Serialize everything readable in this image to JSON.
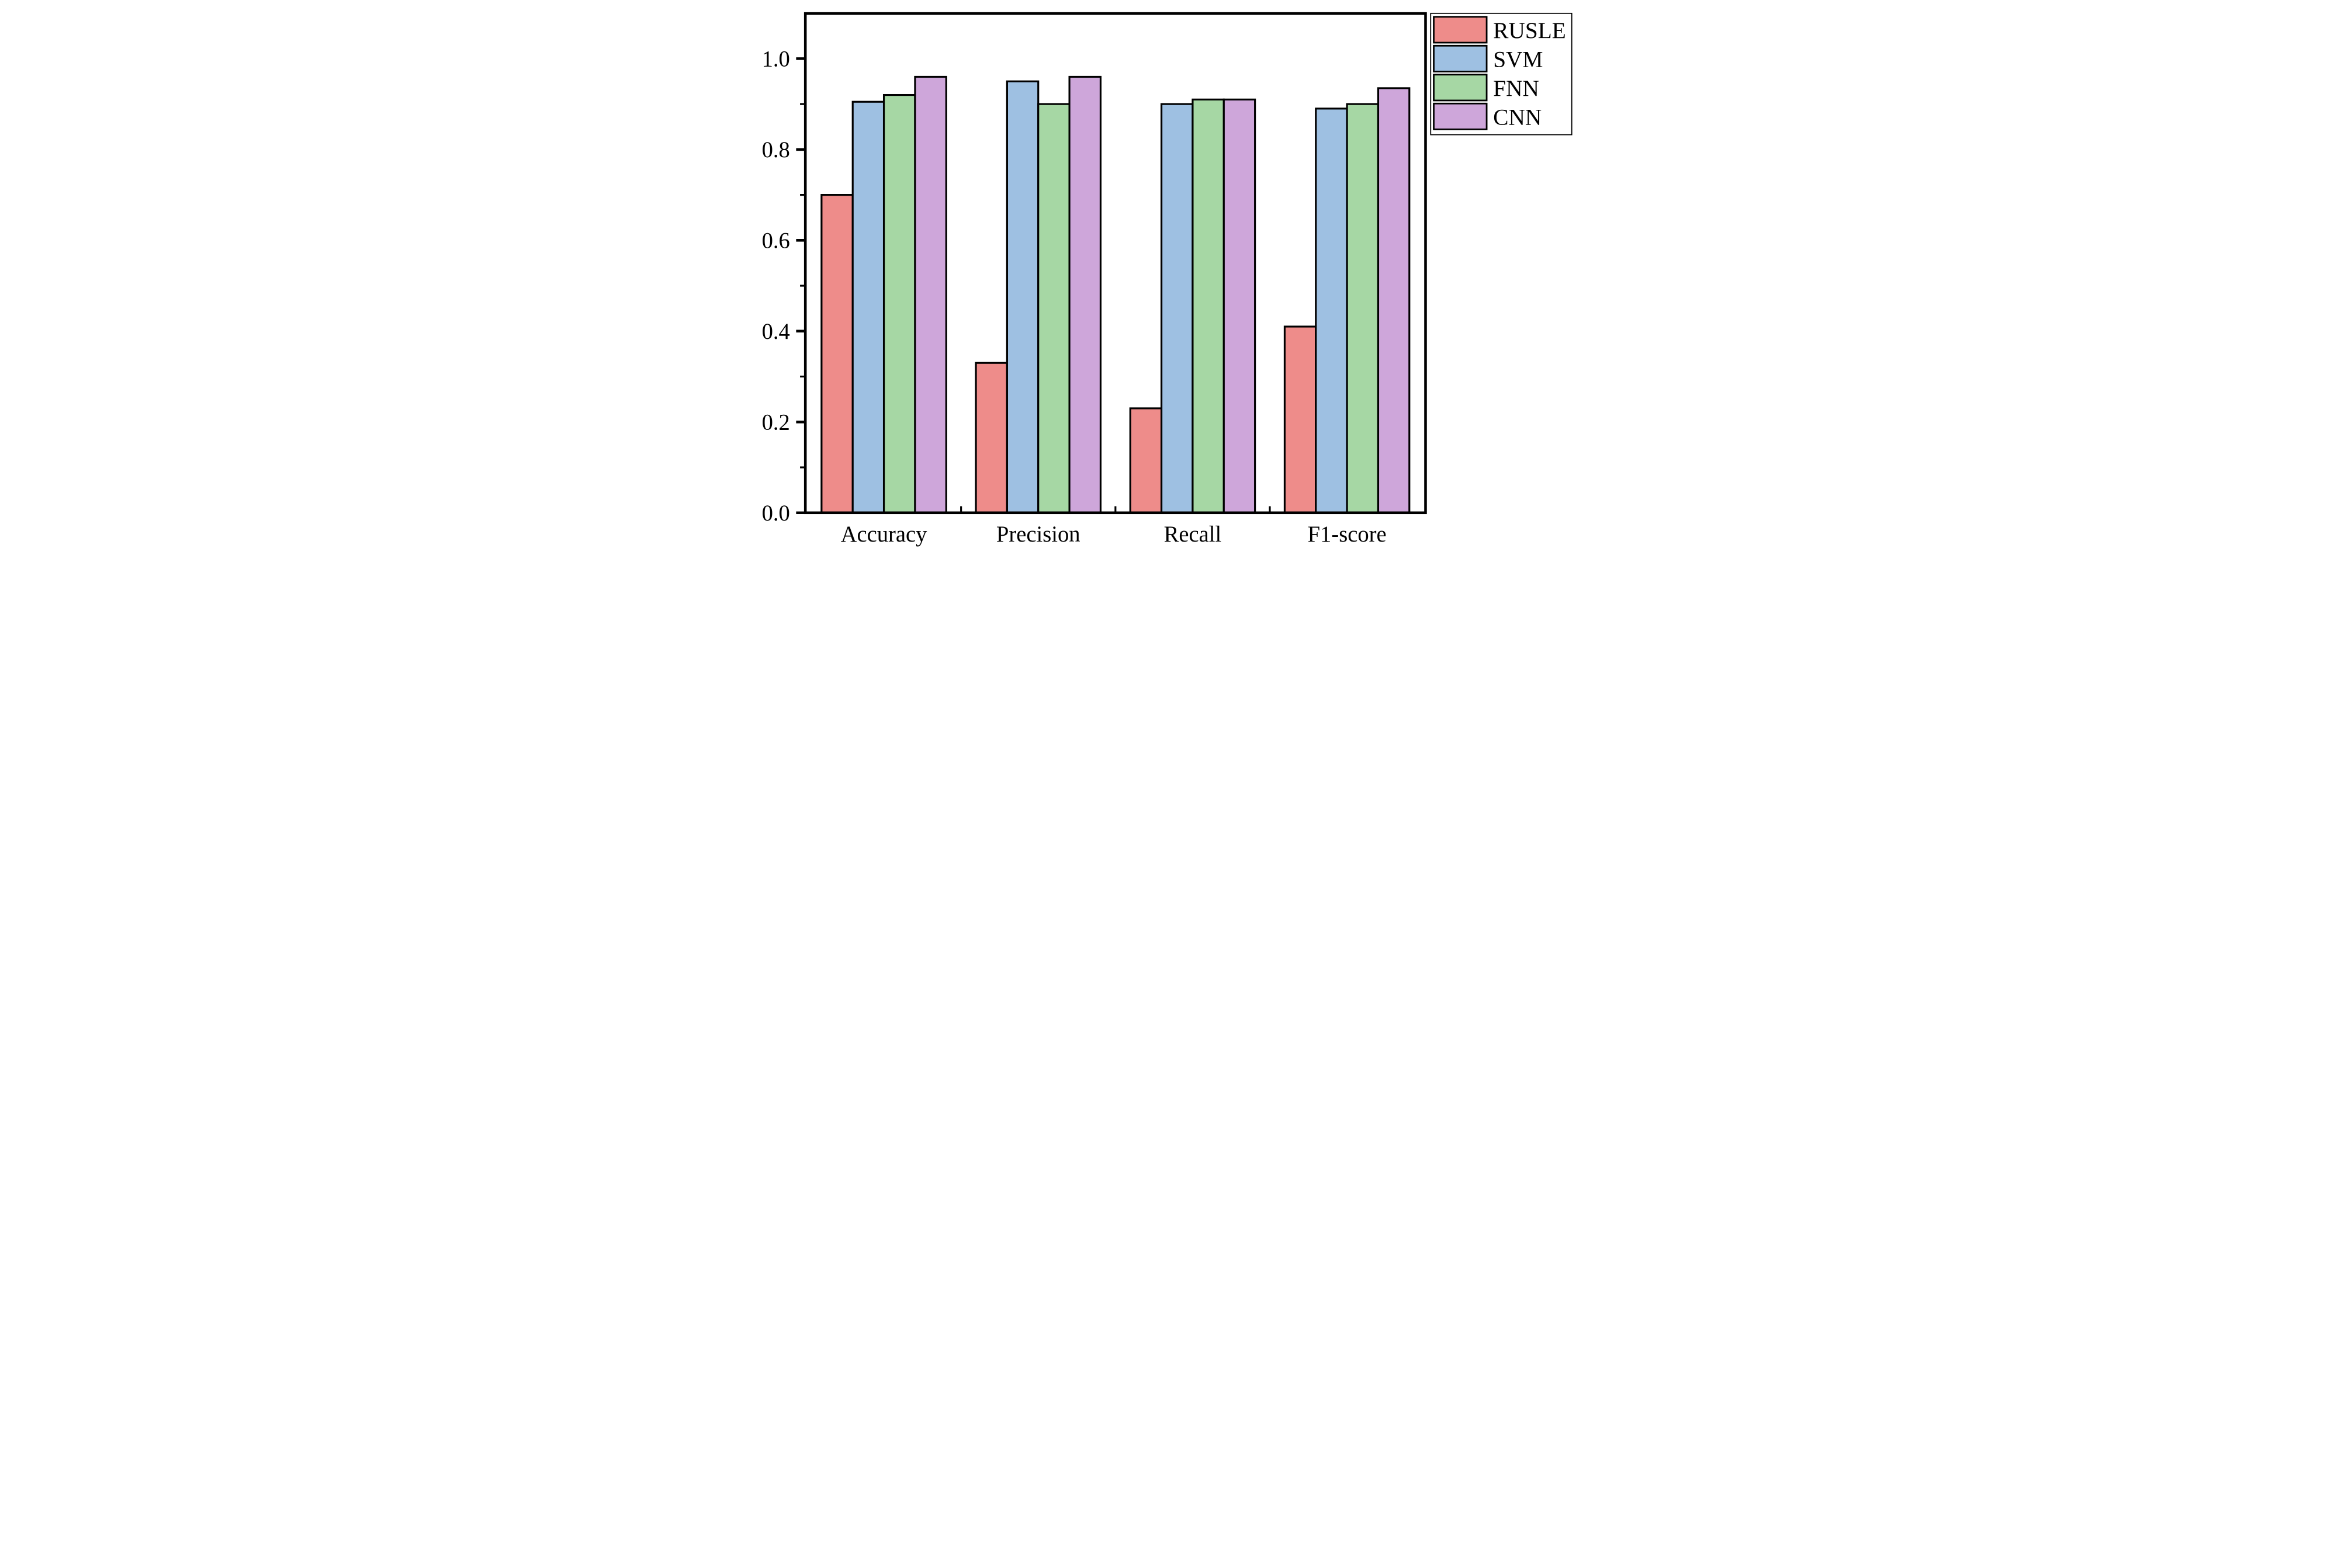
{
  "figure": {
    "background": "#FFFFFF",
    "frame_color": "#000000"
  },
  "chart_data": {
    "type": "bar",
    "title": "",
    "xlabel": "",
    "ylabel": "",
    "categories": [
      "Accuracy",
      "Precision",
      "Recall",
      "F1-score"
    ],
    "series": [
      {
        "name": "RUSLE",
        "color": "#EE8C8A",
        "values": [
          0.7,
          0.33,
          0.23,
          0.41
        ]
      },
      {
        "name": "SVM",
        "color": "#9EC0E2",
        "values": [
          0.905,
          0.95,
          0.9,
          0.89
        ]
      },
      {
        "name": "FNN",
        "color": "#A6D7A4",
        "values": [
          0.92,
          0.9,
          0.91,
          0.9
        ]
      },
      {
        "name": "CNN",
        "color": "#CEA6DA",
        "values": [
          0.96,
          0.96,
          0.91,
          0.935
        ]
      }
    ],
    "ylim": [
      0,
      1.1
    ],
    "ytick_major": [
      0.0,
      0.2,
      0.4,
      0.6,
      0.8,
      1.0
    ],
    "ytick_labels": [
      "0.0",
      "0.2",
      "0.4",
      "0.6",
      "0.8",
      "1.0"
    ],
    "ytick_minor": [
      0.1,
      0.3,
      0.5,
      0.7,
      0.9
    ],
    "bar_edge_color": "#000000",
    "grid": false,
    "legend": {
      "position": "top-right-outside",
      "entries": [
        "RUSLE",
        "SVM",
        "FNN",
        "CNN"
      ]
    }
  }
}
